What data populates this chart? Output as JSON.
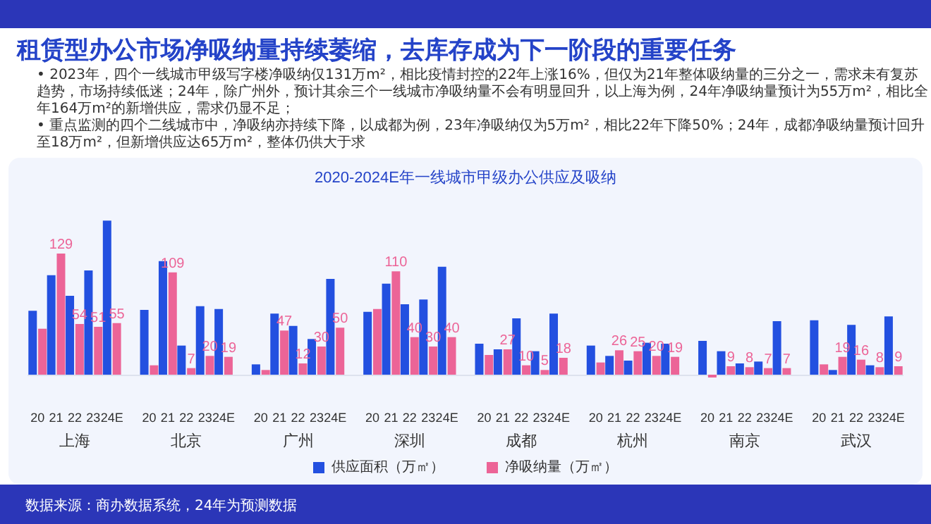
{
  "chart_data": {
    "type": "bar",
    "title": "租赁型办公市场净吸纳量持续萎缩，去库存成为下一阶段的重要任务",
    "subtitle": "2020-2024E年一线城市甲级办公供应及吸纳",
    "categories": [
      "20",
      "21",
      "22",
      "23",
      "24E",
      null,
      "20",
      "21",
      "22",
      "23",
      "24E",
      null,
      "20",
      "21",
      "22",
      "23",
      "24E",
      null,
      "20",
      "21",
      "22",
      "23",
      "24E",
      null,
      "20",
      "21",
      "22",
      "23",
      "24E",
      null,
      "20",
      "21",
      "22",
      "23",
      "24E",
      null,
      "20",
      "21",
      "22",
      "23",
      "24E",
      null,
      "20",
      "21",
      "22",
      "23",
      "24E"
    ],
    "series": [
      {
        "name": "供应面积（万㎡）",
        "color": "#2350e0",
        "values": [
          68,
          106,
          84,
          111,
          164,
          null,
          69,
          121,
          31,
          73,
          70,
          null,
          11,
          65,
          52,
          38,
          102,
          null,
          67,
          97,
          75,
          80,
          115,
          null,
          33,
          27,
          60,
          25,
          65,
          null,
          31,
          20,
          15,
          34,
          33,
          null,
          36,
          25,
          12,
          14,
          57,
          null,
          58,
          5,
          53,
          10,
          62
        ]
      },
      {
        "name": "净吸纳量（万㎡）",
        "color": "#ec6497",
        "values": [
          49,
          129,
          54,
          51,
          55,
          null,
          10,
          109,
          7,
          20,
          19,
          null,
          5,
          47,
          12,
          30,
          50,
          null,
          70,
          110,
          40,
          30,
          40,
          null,
          21,
          27,
          10,
          5,
          18,
          null,
          13,
          26,
          25,
          20,
          19,
          null,
          -3,
          9,
          8,
          7,
          7,
          null,
          11,
          19,
          16,
          8,
          9
        ],
        "value_labels": [
          null,
          "129",
          "54",
          "51",
          "55",
          null,
          null,
          "109",
          "7",
          "20",
          "19",
          null,
          null,
          "47",
          "12",
          "30",
          "50",
          null,
          null,
          "110",
          "40",
          "30",
          "40",
          null,
          null,
          "27",
          "10",
          "5",
          "18",
          null,
          null,
          "26",
          "25",
          "20",
          "19",
          null,
          null,
          "9",
          "8",
          "7",
          "7",
          null,
          null,
          "19",
          "16",
          "8",
          "9"
        ]
      }
    ],
    "legend": "bottom",
    "grid": false,
    "annotations": [
      "• 2023年，四个一线城市甲级写字楼净吸纳仅131万m²，相比疫情封控的22年上涨16%，但仅为21年整体吸纳量的三分之一，需求未有复苏趋势，市场持续低迷；24年，除广州外，预计其余三个一线城市净吸纳量不会有明显回升，以上海为例，24年净吸纳量预计为55万m²，相比全年164万m²的新增供应，需求仍显不足；",
      "• 重点监测的四个二线城市中，净吸纳亦持续下降，以成都为例，23年净吸纳仅为5万m²，相比22年下降50%；24年，成都净吸纳量预计回升至18万m²，但新增供应达65万m²，整体仍供大于求",
      "上海",
      "北京",
      "广州",
      "深圳",
      "成都",
      "杭州",
      "南京",
      "武汉",
      "数据来源：商办数据系统，24年为预测数据"
    ]
  }
}
